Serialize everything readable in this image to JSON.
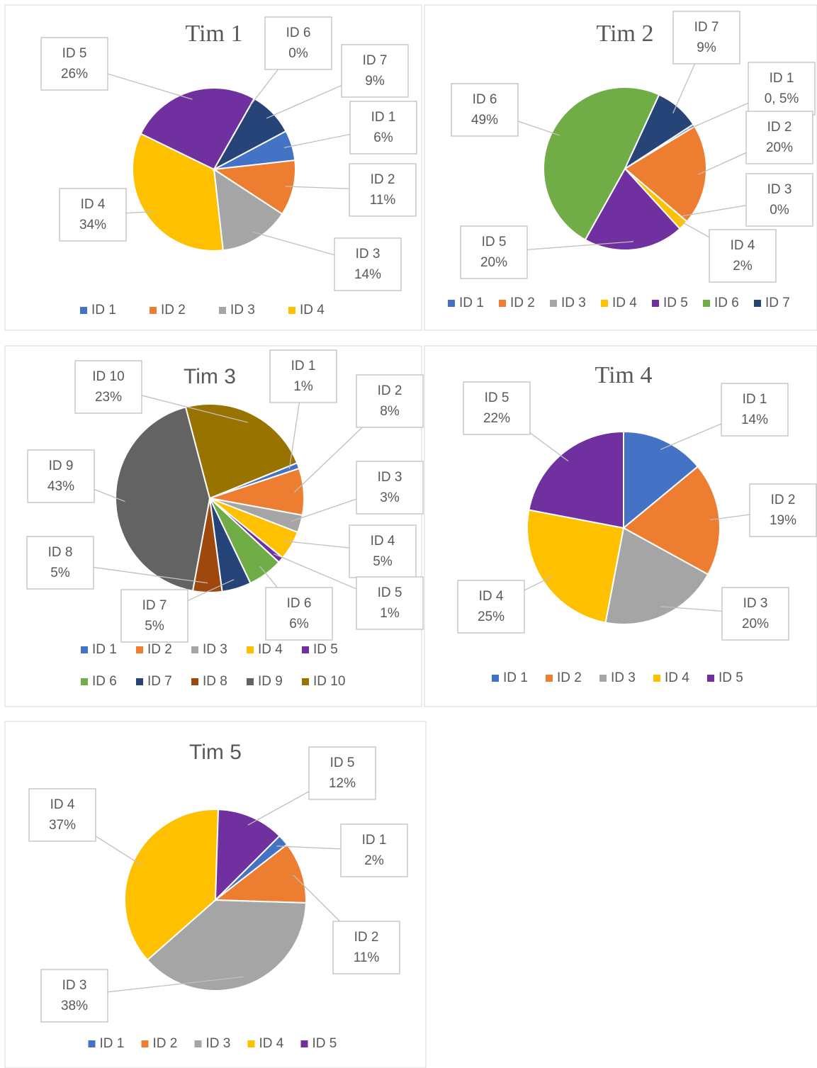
{
  "chart_data": [
    {
      "type": "pie",
      "title": "Tim 1",
      "categories": [
        "ID 1",
        "ID 2",
        "ID 3",
        "ID 4",
        "ID 5",
        "ID 6",
        "ID 7"
      ],
      "values": [
        6,
        11,
        14,
        34,
        26,
        0,
        9
      ],
      "value_labels": [
        "6%",
        "11%",
        "14%",
        "34%",
        "26%",
        "0%",
        "9%"
      ],
      "colors": [
        "#4472c4",
        "#ed7d31",
        "#a5a5a5",
        "#ffc000",
        "#7030a0",
        "#70ad47",
        "#264478"
      ],
      "legend": "bottom"
    },
    {
      "type": "pie",
      "title": "Tim 2",
      "categories": [
        "ID 1",
        "ID 2",
        "ID 3",
        "ID 4",
        "ID 5",
        "ID 6",
        "ID 7"
      ],
      "values": [
        0.5,
        20,
        0,
        2,
        20,
        49,
        9
      ],
      "value_labels": [
        "0, 5%",
        "20%",
        "0%",
        "2%",
        "20%",
        "49%",
        "9%"
      ],
      "colors": [
        "#4472c4",
        "#ed7d31",
        "#a5a5a5",
        "#ffc000",
        "#7030a0",
        "#70ad47",
        "#264478"
      ],
      "legend": "bottom"
    },
    {
      "type": "pie",
      "title": "Tim 3",
      "categories": [
        "ID 1",
        "ID 2",
        "ID 3",
        "ID 4",
        "ID 5",
        "ID 6",
        "ID 7",
        "ID 8",
        "ID 9",
        "ID 10"
      ],
      "values": [
        1,
        8,
        3,
        5,
        1,
        6,
        5,
        5,
        43,
        23
      ],
      "value_labels": [
        "1%",
        "8%",
        "3%",
        "5%",
        "1%",
        "6%",
        "5%",
        "5%",
        "43%",
        "23%"
      ],
      "colors": [
        "#4472c4",
        "#ed7d31",
        "#a5a5a5",
        "#ffc000",
        "#7030a0",
        "#70ad47",
        "#264478",
        "#9e480e",
        "#636363",
        "#997300"
      ],
      "legend": "bottom"
    },
    {
      "type": "pie",
      "title": "Tim 4",
      "categories": [
        "ID 1",
        "ID 2",
        "ID 3",
        "ID 4",
        "ID 5"
      ],
      "values": [
        14,
        19,
        20,
        25,
        22
      ],
      "value_labels": [
        "14%",
        "19%",
        "20%",
        "25%",
        "22%"
      ],
      "colors": [
        "#4472c4",
        "#ed7d31",
        "#a5a5a5",
        "#ffc000",
        "#7030a0"
      ],
      "legend": "bottom"
    },
    {
      "type": "pie",
      "title": "Tim 5",
      "categories": [
        "ID 1",
        "ID 2",
        "ID 3",
        "ID 4",
        "ID 5"
      ],
      "values": [
        2,
        11,
        38,
        37,
        12
      ],
      "value_labels": [
        "2%",
        "11%",
        "38%",
        "37%",
        "12%"
      ],
      "colors": [
        "#4472c4",
        "#ed7d31",
        "#a5a5a5",
        "#ffc000",
        "#7030a0"
      ],
      "legend": "bottom"
    }
  ]
}
